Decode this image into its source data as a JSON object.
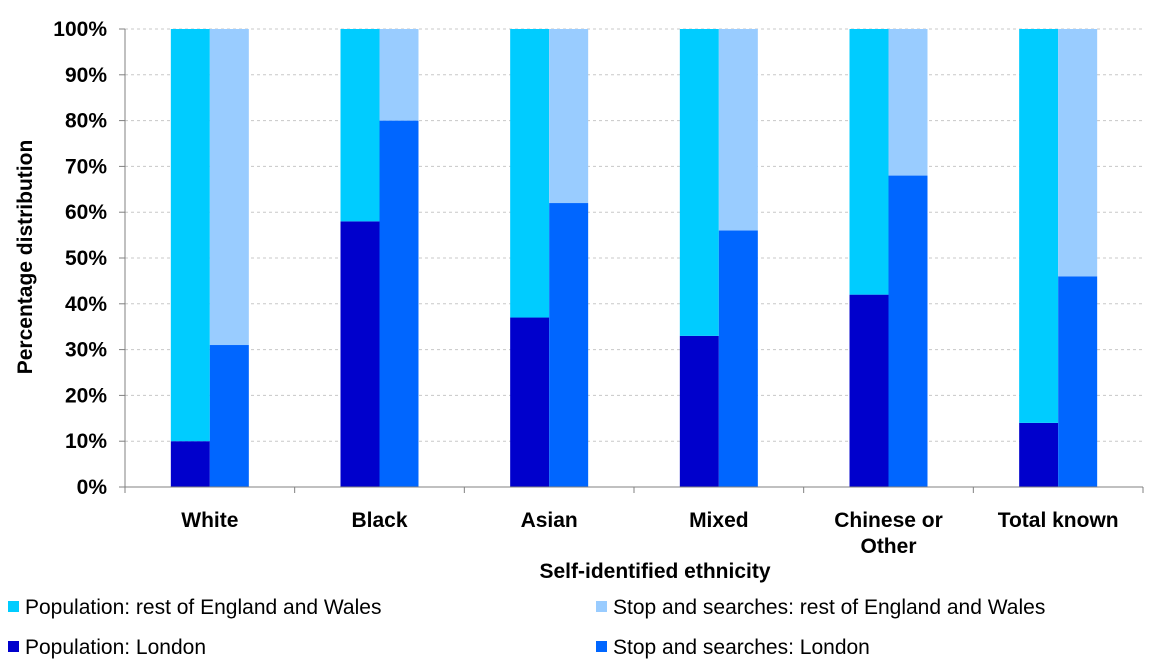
{
  "chart_data": {
    "type": "bar",
    "title": "",
    "xlabel": "Self-identified  ethnicity",
    "ylabel": "Percentage distribution",
    "ylim": [
      0,
      100
    ],
    "y_ticks": [
      "0%",
      "10%",
      "20%",
      "30%",
      "40%",
      "50%",
      "60%",
      "70%",
      "80%",
      "90%",
      "100%"
    ],
    "y_tick_values": [
      0,
      10,
      20,
      30,
      40,
      50,
      60,
      70,
      80,
      90,
      100
    ],
    "grid": "horizontal dashed",
    "legend_position": "bottom",
    "categories": [
      [
        "White"
      ],
      [
        "Black"
      ],
      [
        "Asian"
      ],
      [
        "Mixed"
      ],
      [
        "Chinese or",
        "Other"
      ],
      [
        "Total known"
      ]
    ],
    "stacks": [
      {
        "stack": "population",
        "series": [
          {
            "name": "Population: London",
            "color": "#0000CC",
            "values": [
              10,
              58,
              37,
              33,
              42,
              14
            ]
          },
          {
            "name": "Population: rest of England and Wales",
            "color": "#00CCFF",
            "values": [
              90,
              42,
              63,
              67,
              58,
              86
            ]
          }
        ]
      },
      {
        "stack": "stop-and-searches",
        "series": [
          {
            "name": "Stop and searches: London",
            "color": "#0066FF",
            "values": [
              31,
              80,
              62,
              56,
              68,
              46
            ]
          },
          {
            "name": "Stop and searches: rest of England and Wales",
            "color": "#99CCFF",
            "values": [
              69,
              20,
              38,
              44,
              32,
              54
            ]
          }
        ]
      }
    ],
    "legend": [
      {
        "label": "Population: rest of England and Wales",
        "color": "#00CCFF"
      },
      {
        "label": "Stop and searches: rest of England and Wales",
        "color": "#99CCFF"
      },
      {
        "label": "Population: London",
        "color": "#0000CC"
      },
      {
        "label": "Stop and searches: London",
        "color": "#0066FF"
      }
    ]
  }
}
